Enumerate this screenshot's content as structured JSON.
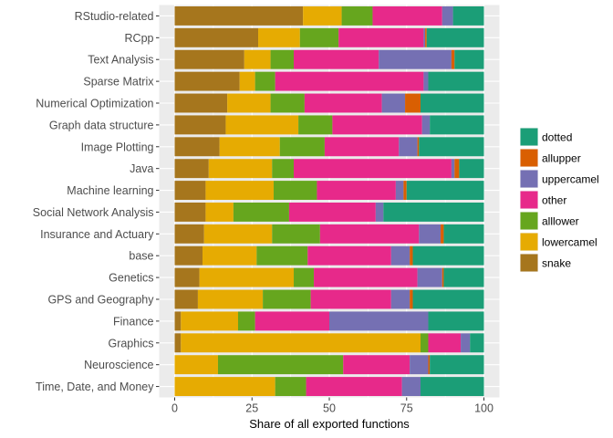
{
  "chart_data": {
    "type": "bar",
    "orientation": "horizontal",
    "stacked": true,
    "xlabel": "Share of all exported functions",
    "ylabel": "",
    "xlim": [
      0,
      100
    ],
    "x_ticks": [
      "0",
      "25",
      "50",
      "75",
      "100"
    ],
    "grid": true,
    "legend_position": "right",
    "categories": [
      "RStudio-related",
      "RCpp",
      "Text Analysis",
      "Sparse Matrix",
      "Numerical Optimization",
      "Graph data structure",
      "Image Plotting",
      "Java",
      "Machine learning",
      "Social Network Analysis",
      "Insurance and Actuary",
      "base",
      "Genetics",
      "GPS and Geography",
      "Finance",
      "Graphics",
      "Neuroscience",
      "Time, Date, and Money"
    ],
    "series": [
      {
        "name": "snake",
        "color": "#A6761D",
        "values": [
          41.5,
          27,
          22.5,
          21,
          17,
          16.5,
          14.5,
          11,
          10,
          10,
          9.5,
          9,
          8,
          7.5,
          2,
          2,
          0,
          0
        ]
      },
      {
        "name": "lowercamel",
        "color": "#E6AB02",
        "values": [
          12.5,
          13.5,
          8.5,
          5,
          14,
          23.5,
          19.5,
          20.5,
          22,
          9,
          22,
          17.5,
          30.5,
          21,
          18.5,
          77.5,
          14,
          32.5
        ]
      },
      {
        "name": "alllower",
        "color": "#66A61E",
        "values": [
          10,
          12.5,
          7.5,
          6.5,
          11,
          11,
          14.5,
          7,
          14,
          18,
          15.5,
          16.5,
          6.5,
          15.5,
          5.5,
          2.5,
          40.5,
          10
        ]
      },
      {
        "name": "other",
        "color": "#E7298A",
        "values": [
          22.5,
          27.5,
          27.5,
          48,
          25,
          29,
          24,
          51,
          25.5,
          28,
          32,
          27,
          33.5,
          26,
          24,
          10.5,
          21.5,
          31
        ]
      },
      {
        "name": "uppercamel",
        "color": "#7570B3",
        "values": [
          3.5,
          0.5,
          23.5,
          1.5,
          7.5,
          2.5,
          6,
          1,
          2.5,
          2.5,
          7,
          6,
          8,
          6,
          32,
          3,
          6,
          6
        ]
      },
      {
        "name": "allupper",
        "color": "#D95F02",
        "values": [
          0,
          0.5,
          1,
          0,
          5,
          0,
          0.5,
          1.5,
          1,
          0,
          1,
          1,
          0.5,
          1,
          0,
          0,
          0.5,
          0
        ]
      },
      {
        "name": "dotted",
        "color": "#1B9E77",
        "values": [
          10,
          18.5,
          9.5,
          18,
          20.5,
          17.5,
          21,
          8,
          25,
          32.5,
          13,
          23,
          13,
          23,
          18,
          4.5,
          17.5,
          20.5
        ]
      }
    ],
    "legend_order": [
      "dotted",
      "allupper",
      "uppercamel",
      "other",
      "alllower",
      "lowercamel",
      "snake"
    ]
  }
}
